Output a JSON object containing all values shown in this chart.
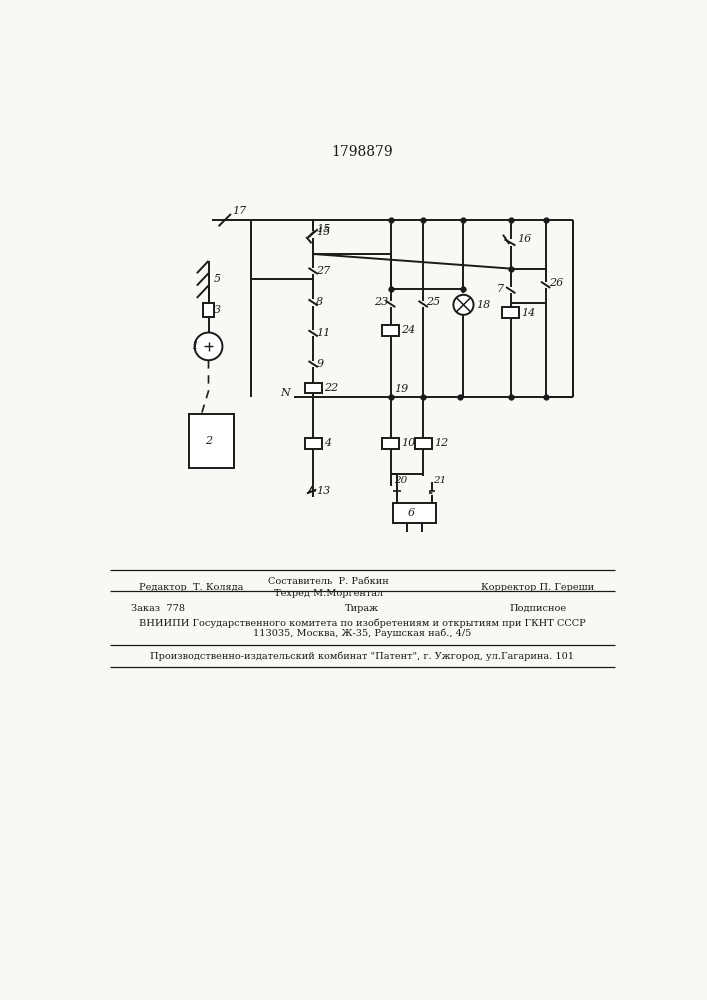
{
  "title": "1798879",
  "title_fontsize": 10,
  "bg": "#f8f8f5",
  "lc": "#1a1a1a",
  "lw": 1.4,
  "footer": {
    "editor": "Редактор  Т. Коляда",
    "composer": "Составитель  Р. Рабкин",
    "techred": "Техред М.Моргентал",
    "corrector": "Корректор П. Гереши",
    "order": "Заказ  778",
    "tirazh": "Тираж",
    "podpisnoe": "Подписное",
    "vniip1": "ВНИИПИ Государственного комитета по изобретениям и открытиям при ГКНТ СССР",
    "vniip2": "113035, Москва, Ж-35, Раушская наб., 4/5",
    "patent": "Производственно-издательский комбинат \"Патент\", г. Ужгород, ул.Гагарина. 101"
  }
}
